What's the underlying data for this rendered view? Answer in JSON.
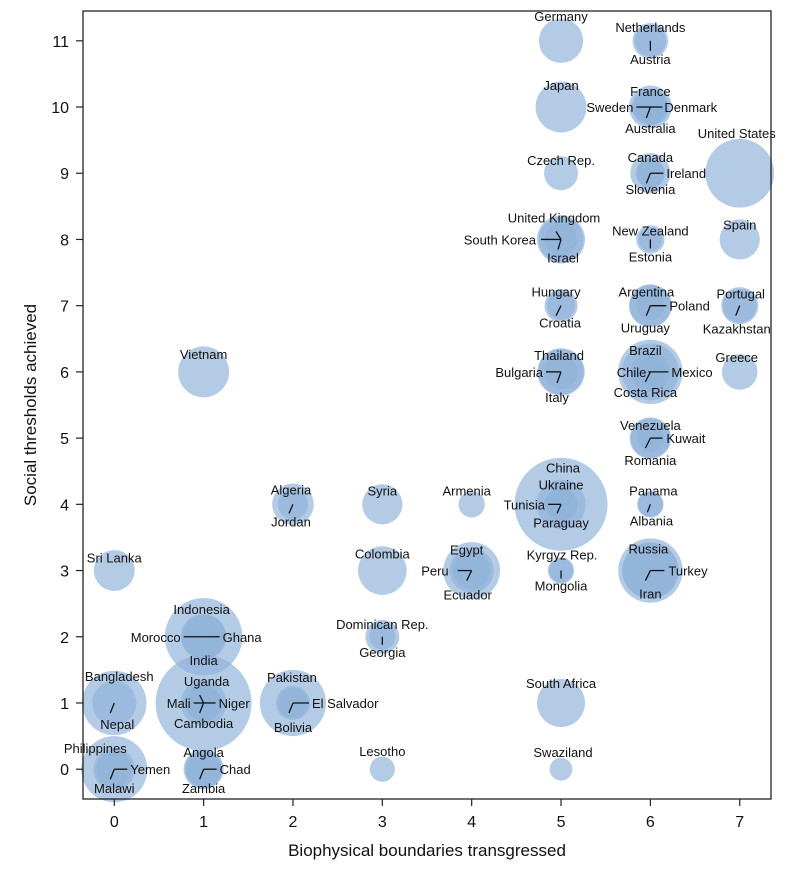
{
  "chart_data": {
    "type": "scatter",
    "xlabel": "Biophysical boundaries transgressed",
    "ylabel": "Social thresholds achieved",
    "xlim": [
      -0.35,
      7.35
    ],
    "ylim": [
      -0.45,
      11.45
    ],
    "x_ticks": [
      "0",
      "1",
      "2",
      "3",
      "4",
      "5",
      "6",
      "7"
    ],
    "y_ticks": [
      "0",
      "1",
      "2",
      "3",
      "4",
      "5",
      "6",
      "7",
      "8",
      "9",
      "10",
      "11"
    ],
    "colors": {
      "bubble": "#8fb2d8",
      "bubble_inner": "#5f8fc2",
      "axis": "#222222"
    },
    "points": [
      {
        "label": "Germany",
        "x": 5,
        "y": 11,
        "size": 0.34
      },
      {
        "label": "Netherlands",
        "x": 6,
        "y": 11,
        "size": 0.22
      },
      {
        "label": "Austria",
        "x": 6,
        "y": 11,
        "size": 0.17
      },
      {
        "label": "Japan",
        "x": 5,
        "y": 10,
        "size": 0.45
      },
      {
        "label": "France",
        "x": 6,
        "y": 10,
        "size": 0.32
      },
      {
        "label": "Sweden",
        "x": 6,
        "y": 10,
        "size": 0.2
      },
      {
        "label": "Denmark",
        "x": 6,
        "y": 10,
        "size": 0.16
      },
      {
        "label": "Australia",
        "x": 6,
        "y": 10,
        "size": 0.24
      },
      {
        "label": "Czech Rep.",
        "x": 5,
        "y": 9,
        "size": 0.2
      },
      {
        "label": "Canada",
        "x": 6,
        "y": 9,
        "size": 0.28
      },
      {
        "label": "Ireland",
        "x": 6,
        "y": 9,
        "size": 0.15
      },
      {
        "label": "Slovenia",
        "x": 6,
        "y": 9,
        "size": 0.13
      },
      {
        "label": "United States",
        "x": 7,
        "y": 9,
        "size": 0.82
      },
      {
        "label": "United Kingdom",
        "x": 5,
        "y": 8,
        "size": 0.4
      },
      {
        "label": "South Korea",
        "x": 5,
        "y": 8,
        "size": 0.35
      },
      {
        "label": "Israel",
        "x": 5,
        "y": 8,
        "size": 0.18
      },
      {
        "label": "New Zealand",
        "x": 6,
        "y": 8,
        "size": 0.14
      },
      {
        "label": "Estonia",
        "x": 6,
        "y": 8,
        "size": 0.1
      },
      {
        "label": "Spain",
        "x": 7,
        "y": 8,
        "size": 0.28
      },
      {
        "label": "Hungary",
        "x": 5,
        "y": 7,
        "size": 0.19
      },
      {
        "label": "Croatia",
        "x": 5,
        "y": 7,
        "size": 0.14
      },
      {
        "label": "Argentina",
        "x": 6,
        "y": 7,
        "size": 0.32
      },
      {
        "label": "Poland",
        "x": 6,
        "y": 7,
        "size": 0.3
      },
      {
        "label": "Uruguay",
        "x": 6,
        "y": 7,
        "size": 0.14
      },
      {
        "label": "Portugal",
        "x": 7,
        "y": 7,
        "size": 0.2
      },
      {
        "label": "Kazakhstan",
        "x": 7,
        "y": 7,
        "size": 0.24
      },
      {
        "label": "Vietnam",
        "x": 1,
        "y": 6,
        "size": 0.45
      },
      {
        "label": "Thailand",
        "x": 5,
        "y": 6,
        "size": 0.39
      },
      {
        "label": "Bulgaria",
        "x": 5,
        "y": 6,
        "size": 0.2
      },
      {
        "label": "Italy",
        "x": 5,
        "y": 6,
        "size": 0.36
      },
      {
        "label": "Brazil",
        "x": 6,
        "y": 6,
        "size": 0.72
      },
      {
        "label": "Chile",
        "x": 6,
        "y": 6,
        "size": 0.27
      },
      {
        "label": "Mexico",
        "x": 6,
        "y": 6,
        "size": 0.56
      },
      {
        "label": "Costa Rica",
        "x": 6,
        "y": 6,
        "size": 0.14
      },
      {
        "label": "Greece",
        "x": 7,
        "y": 6,
        "size": 0.22
      },
      {
        "label": "Venezuela",
        "x": 6,
        "y": 5,
        "size": 0.3
      },
      {
        "label": "Kuwait",
        "x": 6,
        "y": 5,
        "size": 0.13
      },
      {
        "label": "Romania",
        "x": 6,
        "y": 5,
        "size": 0.27
      },
      {
        "label": "Algeria",
        "x": 2,
        "y": 4,
        "size": 0.3
      },
      {
        "label": "Jordan",
        "x": 2,
        "y": 4,
        "size": 0.16
      },
      {
        "label": "Syria",
        "x": 3,
        "y": 4,
        "size": 0.28
      },
      {
        "label": "Armenia",
        "x": 4,
        "y": 4,
        "size": 0.12
      },
      {
        "label": "China",
        "x": 5,
        "y": 4,
        "size": 1.5
      },
      {
        "label": "Ukraine",
        "x": 5,
        "y": 4,
        "size": 0.42
      },
      {
        "label": "Tunisia",
        "x": 5,
        "y": 4,
        "size": 0.19
      },
      {
        "label": "Paraguay",
        "x": 5,
        "y": 4,
        "size": 0.16
      },
      {
        "label": "Panama",
        "x": 6,
        "y": 4,
        "size": 0.12
      },
      {
        "label": "Albania",
        "x": 6,
        "y": 4,
        "size": 0.11
      },
      {
        "label": "Sri Lanka",
        "x": 0,
        "y": 3,
        "size": 0.29
      },
      {
        "label": "Colombia",
        "x": 3,
        "y": 3,
        "size": 0.41
      },
      {
        "label": "Egypt",
        "x": 4,
        "y": 3,
        "size": 0.56
      },
      {
        "label": "Peru",
        "x": 4,
        "y": 3,
        "size": 0.34
      },
      {
        "label": "Ecuador",
        "x": 4,
        "y": 3,
        "size": 0.24
      },
      {
        "label": "Kyrgyz Rep.",
        "x": 5,
        "y": 3,
        "size": 0.1
      },
      {
        "label": "Mongolia",
        "x": 5,
        "y": 3,
        "size": 0.12
      },
      {
        "label": "Russia",
        "x": 6,
        "y": 3,
        "size": 0.72
      },
      {
        "label": "Turkey",
        "x": 6,
        "y": 3,
        "size": 0.55
      },
      {
        "label": "Iran",
        "x": 6,
        "y": 3,
        "size": 0.55
      },
      {
        "label": "Indonesia",
        "x": 1,
        "y": 2,
        "size": 1.04
      },
      {
        "label": "Morocco",
        "x": 1,
        "y": 2,
        "size": 0.36
      },
      {
        "label": "Ghana",
        "x": 1,
        "y": 2,
        "size": 0.33
      },
      {
        "label": "Dominican Rep.",
        "x": 3,
        "y": 2,
        "size": 0.2
      },
      {
        "label": "Georgia",
        "x": 3,
        "y": 2,
        "size": 0.12
      },
      {
        "label": "India",
        "x": 1,
        "y": 1,
        "size": 1.6
      },
      {
        "label": "Uganda",
        "x": 1,
        "y": 1,
        "size": 0.36
      },
      {
        "label": "Mali",
        "x": 1,
        "y": 1,
        "size": 0.2
      },
      {
        "label": "Niger",
        "x": 1,
        "y": 1,
        "size": 0.2
      },
      {
        "label": "Cambodia",
        "x": 1,
        "y": 1,
        "size": 0.23
      },
      {
        "label": "Bangladesh",
        "x": 0,
        "y": 1,
        "size": 0.72
      },
      {
        "label": "Nepal",
        "x": 0,
        "y": 1,
        "size": 0.34
      },
      {
        "label": "Pakistan",
        "x": 2,
        "y": 1,
        "size": 0.76
      },
      {
        "label": "El Salvador",
        "x": 2,
        "y": 1,
        "size": 0.16
      },
      {
        "label": "Bolivia",
        "x": 2,
        "y": 1,
        "size": 0.2
      },
      {
        "label": "South Africa",
        "x": 5,
        "y": 1,
        "size": 0.4
      },
      {
        "label": "Philippines",
        "x": 0,
        "y": 0,
        "size": 0.76
      },
      {
        "label": "Yemen",
        "x": 0,
        "y": 0,
        "size": 0.3
      },
      {
        "label": "Malawi",
        "x": 0,
        "y": 0,
        "size": 0.22
      },
      {
        "label": "Angola",
        "x": 1,
        "y": 0,
        "size": 0.28
      },
      {
        "label": "Chad",
        "x": 1,
        "y": 0,
        "size": 0.22
      },
      {
        "label": "Zambia",
        "x": 1,
        "y": 0,
        "size": 0.24
      },
      {
        "label": "Lesotho",
        "x": 3,
        "y": 0,
        "size": 0.11
      },
      {
        "label": "Swaziland",
        "x": 5,
        "y": 0,
        "size": 0.09
      }
    ]
  }
}
